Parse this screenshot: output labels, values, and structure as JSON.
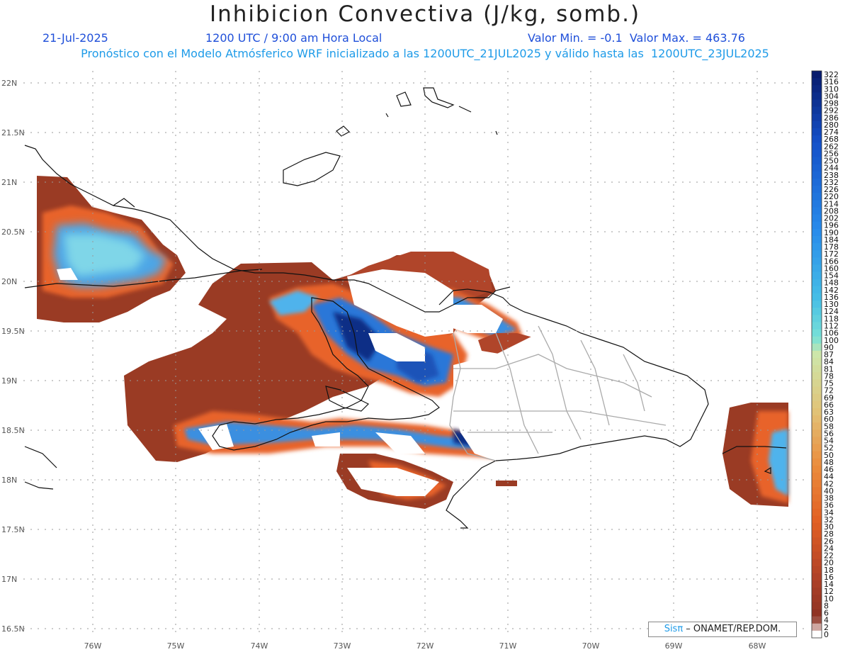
{
  "header": {
    "title": "Inhibicion Convectiva (J/kg, somb.)",
    "date": "21-Jul-2025",
    "time": "1200 UTC / 9:00 am Hora Local",
    "minmax": "Valor Min. = -0.1  Valor Max. = 463.76",
    "subtitle": "Pronóstico con el Modelo Atmósferico WRF inicializado a las 1200UTC_21JUL2025 y válido hasta las  1200UTC_23JUL2025"
  },
  "axes": {
    "lat_labels": [
      "22N",
      "21.5N",
      "21N",
      "20.5N",
      "20N",
      "19.5N",
      "19N",
      "18.5N",
      "18N",
      "17.5N",
      "17N",
      "16.5N"
    ],
    "lon_labels": [
      "76W",
      "75W",
      "74W",
      "73W",
      "72W",
      "71W",
      "70W",
      "69W",
      "68W"
    ]
  },
  "colorbar": {
    "labels": [
      "322",
      "316",
      "310",
      "304",
      "298",
      "292",
      "286",
      "280",
      "274",
      "268",
      "262",
      "256",
      "250",
      "244",
      "238",
      "232",
      "226",
      "220",
      "214",
      "208",
      "202",
      "196",
      "190",
      "184",
      "178",
      "172",
      "166",
      "160",
      "154",
      "148",
      "142",
      "136",
      "130",
      "124",
      "118",
      "112",
      "106",
      "100",
      "90",
      "87",
      "84",
      "81",
      "78",
      "75",
      "72",
      "69",
      "66",
      "63",
      "60",
      "58",
      "56",
      "54",
      "52",
      "50",
      "48",
      "46",
      "44",
      "42",
      "40",
      "38",
      "36",
      "34",
      "32",
      "30",
      "28",
      "26",
      "24",
      "22",
      "20",
      "18",
      "16",
      "14",
      "12",
      "10",
      "8",
      "6",
      "4",
      "2",
      "0"
    ]
  },
  "credit": {
    "brand": "Sisπ",
    "text": " – ONAMET/REP.DOM."
  }
}
